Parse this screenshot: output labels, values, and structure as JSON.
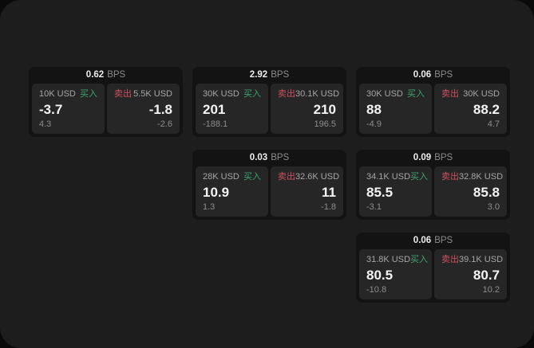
{
  "labels": {
    "bps": "BPS",
    "buy": "买入",
    "sell": "卖出"
  },
  "colors": {
    "buy_green": "#3da46d",
    "sell_red": "#cf4f62",
    "screen_bg": "#1d1d1d",
    "card_bg": "#131313",
    "tile_bg": "#262626",
    "indicator_red": "#8e1f1f"
  },
  "cards": [
    {
      "position": "r1c1",
      "bps": "0.62",
      "buy": {
        "amount": "10K USD",
        "price": "-3.7",
        "change": "4.3"
      },
      "sell": {
        "amount": "5.5K USD",
        "price": "-1.8",
        "change": "-2.6"
      }
    },
    {
      "position": "r1c2",
      "bps": "2.92",
      "buy": {
        "amount": "30K USD",
        "price": "201",
        "change": "-188.1"
      },
      "sell": {
        "amount": "30.1K USD",
        "price": "210",
        "change": "196.5"
      }
    },
    {
      "position": "r1c3",
      "bps": "0.06",
      "buy": {
        "amount": "30K USD",
        "price": "88",
        "change": "-4.9"
      },
      "sell": {
        "amount": "30K USD",
        "price": "88.2",
        "change": "4.7"
      }
    },
    {
      "position": "r2c2",
      "bps": "0.03",
      "buy": {
        "amount": "28K USD",
        "price": "10.9",
        "change": "1.3"
      },
      "sell": {
        "amount": "32.6K USD",
        "price": "11",
        "change": "-1.8"
      }
    },
    {
      "position": "r2c3",
      "bps": "0.09",
      "buy": {
        "amount": "34.1K USD",
        "price": "85.5",
        "change": "-3.1"
      },
      "sell": {
        "amount": "32.8K USD",
        "price": "85.8",
        "change": "3.0"
      }
    },
    {
      "position": "r3c3",
      "bps": "0.06",
      "buy": {
        "amount": "31.8K USD",
        "price": "80.5",
        "change": "-10.8"
      },
      "sell": {
        "amount": "39.1K USD",
        "price": "80.7",
        "change": "10.2"
      }
    }
  ]
}
